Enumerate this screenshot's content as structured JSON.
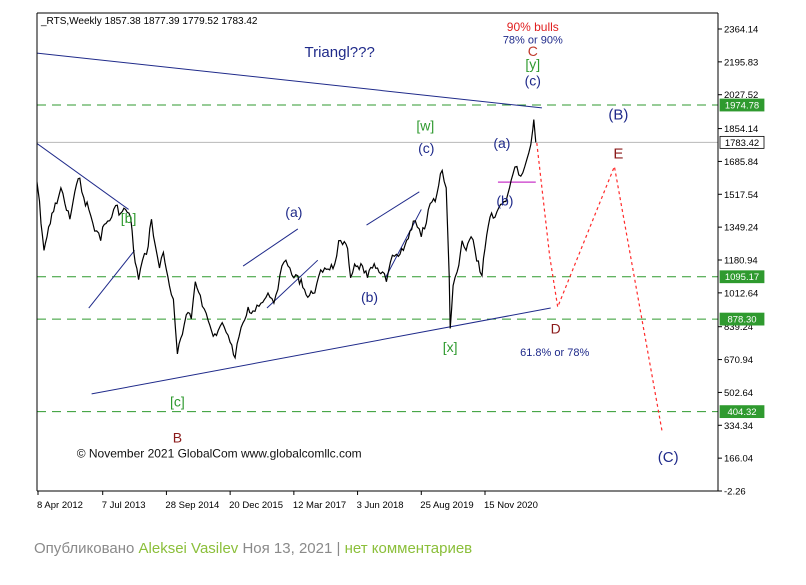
{
  "chart_data": {
    "type": "line",
    "header": {
      "symbol": "_RTS,Weekly",
      "ohlc": [
        "1857.38",
        "1877.39",
        "1779.52",
        "1783.42"
      ]
    },
    "y_ticks": [
      "2364.14",
      "2195.83",
      "2027.52",
      "1854.14",
      "1685.84",
      "1517.54",
      "1349.24",
      "1180.94",
      "1012.64",
      "839.24",
      "670.94",
      "502.64",
      "334.34",
      "166.04",
      "-2.26"
    ],
    "y_tick_values": [
      2364.14,
      2195.83,
      2027.52,
      1854.14,
      1685.84,
      1517.54,
      1349.24,
      1180.94,
      1012.64,
      839.24,
      670.94,
      502.64,
      334.34,
      166.04,
      -2.26
    ],
    "x_ticks": [
      "8 Apr 2012",
      "7 Jul 2013",
      "28 Sep 2014",
      "20 Dec 2015",
      "12 Mar 2017",
      "3 Jun 2018",
      "25 Aug 2019",
      "15 Nov 2020"
    ],
    "x_tick_dates": [
      "2012-04-08",
      "2013-07-07",
      "2014-09-28",
      "2015-12-20",
      "2017-03-12",
      "2018-06-03",
      "2019-08-25",
      "2020-11-15"
    ],
    "ylim": [
      -2.26,
      2490
    ],
    "price_series": {
      "name": "",
      "points": [
        [
          "2011-12-04",
          1650
        ],
        [
          "2012-01-15",
          1500
        ],
        [
          "2012-02-12",
          1650
        ],
        [
          "2012-03-11",
          1700
        ],
        [
          "2012-04-08",
          1540
        ],
        [
          "2012-05-20",
          1230
        ],
        [
          "2012-06-10",
          1300
        ],
        [
          "2012-07-15",
          1420
        ],
        [
          "2012-08-19",
          1470
        ],
        [
          "2012-09-16",
          1550
        ],
        [
          "2012-10-14",
          1470
        ],
        [
          "2012-11-18",
          1390
        ],
        [
          "2012-12-23",
          1530
        ],
        [
          "2013-01-27",
          1600
        ],
        [
          "2013-02-24",
          1500
        ],
        [
          "2013-03-31",
          1440
        ],
        [
          "2013-04-28",
          1370
        ],
        [
          "2013-05-26",
          1330
        ],
        [
          "2013-06-23",
          1280
        ],
        [
          "2013-07-07",
          1350
        ],
        [
          "2013-08-11",
          1380
        ],
        [
          "2013-09-08",
          1400
        ],
        [
          "2013-10-06",
          1460
        ],
        [
          "2013-11-10",
          1420
        ],
        [
          "2013-12-15",
          1440
        ],
        [
          "2014-01-19",
          1400
        ],
        [
          "2014-02-09",
          1230
        ],
        [
          "2014-03-16",
          1080
        ],
        [
          "2014-04-13",
          1180
        ],
        [
          "2014-05-11",
          1210
        ],
        [
          "2014-06-15",
          1390
        ],
        [
          "2014-07-13",
          1250
        ],
        [
          "2014-08-10",
          1140
        ],
        [
          "2014-09-07",
          1220
        ],
        [
          "2014-09-28",
          1130
        ],
        [
          "2014-10-19",
          1050
        ],
        [
          "2014-11-16",
          980
        ],
        [
          "2014-12-14",
          700
        ],
        [
          "2015-01-18",
          800
        ],
        [
          "2015-02-15",
          900
        ],
        [
          "2015-03-22",
          880
        ],
        [
          "2015-04-19",
          1070
        ],
        [
          "2015-05-24",
          1000
        ],
        [
          "2015-06-21",
          930
        ],
        [
          "2015-07-19",
          870
        ],
        [
          "2015-08-23",
          790
        ],
        [
          "2015-09-27",
          820
        ],
        [
          "2015-10-25",
          860
        ],
        [
          "2015-11-22",
          810
        ],
        [
          "2015-12-20",
          760
        ],
        [
          "2016-01-24",
          680
        ],
        [
          "2016-02-21",
          790
        ],
        [
          "2016-03-20",
          860
        ],
        [
          "2016-04-24",
          940
        ],
        [
          "2016-05-29",
          920
        ],
        [
          "2016-06-26",
          950
        ],
        [
          "2016-07-24",
          960
        ],
        [
          "2016-08-28",
          990
        ],
        [
          "2016-09-25",
          990
        ],
        [
          "2016-10-23",
          960
        ],
        [
          "2016-11-20",
          1030
        ],
        [
          "2016-12-18",
          1150
        ],
        [
          "2017-01-15",
          1180
        ],
        [
          "2017-02-12",
          1140
        ],
        [
          "2017-03-12",
          1090
        ],
        [
          "2017-04-09",
          1100
        ],
        [
          "2017-05-14",
          1040
        ],
        [
          "2017-06-18",
          990
        ],
        [
          "2017-07-23",
          1010
        ],
        [
          "2017-08-20",
          1060
        ],
        [
          "2017-09-17",
          1130
        ],
        [
          "2017-10-15",
          1140
        ],
        [
          "2017-11-19",
          1130
        ],
        [
          "2017-12-24",
          1160
        ],
        [
          "2018-01-21",
          1280
        ],
        [
          "2018-02-18",
          1260
        ],
        [
          "2018-03-25",
          1240
        ],
        [
          "2018-04-15",
          1090
        ],
        [
          "2018-05-13",
          1160
        ],
        [
          "2018-06-03",
          1150
        ],
        [
          "2018-07-08",
          1150
        ],
        [
          "2018-08-12",
          1090
        ],
        [
          "2018-09-16",
          1140
        ],
        [
          "2018-10-21",
          1140
        ],
        [
          "2018-11-25",
          1120
        ],
        [
          "2018-12-23",
          1070
        ],
        [
          "2019-01-20",
          1170
        ],
        [
          "2019-02-17",
          1200
        ],
        [
          "2019-03-17",
          1200
        ],
        [
          "2019-04-21",
          1230
        ],
        [
          "2019-05-26",
          1290
        ],
        [
          "2019-06-30",
          1380
        ],
        [
          "2019-07-28",
          1350
        ],
        [
          "2019-08-25",
          1300
        ],
        [
          "2019-09-29",
          1370
        ],
        [
          "2019-10-27",
          1470
        ],
        [
          "2019-12-01",
          1480
        ],
        [
          "2020-01-19",
          1640
        ],
        [
          "2020-02-16",
          1550
        ],
        [
          "2020-03-08",
          1100
        ],
        [
          "2020-03-15",
          830
        ],
        [
          "2020-04-05",
          1050
        ],
        [
          "2020-05-03",
          1120
        ],
        [
          "2020-06-07",
          1280
        ],
        [
          "2020-07-05",
          1230
        ],
        [
          "2020-08-09",
          1300
        ],
        [
          "2020-09-06",
          1230
        ],
        [
          "2020-10-11",
          1120
        ],
        [
          "2020-10-25",
          1100
        ],
        [
          "2020-11-15",
          1240
        ],
        [
          "2020-12-20",
          1400
        ],
        [
          "2021-01-24",
          1400
        ],
        [
          "2021-02-21",
          1450
        ],
        [
          "2021-03-28",
          1480
        ],
        [
          "2021-04-25",
          1520
        ],
        [
          "2021-05-30",
          1620
        ],
        [
          "2021-06-27",
          1660
        ],
        [
          "2021-07-25",
          1610
        ],
        [
          "2021-08-22",
          1660
        ],
        [
          "2021-09-19",
          1730
        ],
        [
          "2021-10-17",
          1850
        ],
        [
          "2021-10-24",
          1900
        ],
        [
          "2021-11-07",
          1783.42
        ]
      ]
    },
    "horizontal_levels": [
      {
        "value": 1974.78,
        "label": "1974.78",
        "color": "#2f9a2f",
        "label_color": "#2f9a2f"
      },
      {
        "value": 1783.42,
        "label": "1783.42",
        "color": "#b8b8b8",
        "label_color": "#000000"
      },
      {
        "value": 1095.17,
        "label": "1095.17",
        "color": "#2f9a2f",
        "label_color": "#2f9a2f"
      },
      {
        "value": 878.3,
        "label": "878.30",
        "color": "#2f9a2f",
        "label_color": "#2f9a2f"
      },
      {
        "value": 404.32,
        "label": "404.32",
        "color": "#2f9a2f",
        "label_color": "#2f9a2f"
      }
    ],
    "trend_lines": [
      {
        "color": "#1f2a8a",
        "from": [
          "2011-12-04",
          2250
        ],
        "to": [
          "2021-12-20",
          1960
        ]
      },
      {
        "color": "#1f2a8a",
        "from": [
          "2013-04-20",
          495
        ],
        "to": [
          "2022-02-20",
          935
        ]
      },
      {
        "color": "#1f2a8a",
        "from": [
          "2011-12-04",
          1840
        ],
        "to": [
          "2014-01-05",
          1440
        ]
      },
      {
        "color": "#1f2a8a",
        "from": [
          "2013-03-31",
          935
        ],
        "to": [
          "2014-02-16",
          1230
        ]
      },
      {
        "color": "#1f2a8a",
        "from": [
          "2016-03-20",
          1150
        ],
        "to": [
          "2017-04-09",
          1340
        ]
      },
      {
        "color": "#1f2a8a",
        "from": [
          "2016-09-04",
          935
        ],
        "to": [
          "2017-08-27",
          1180
        ]
      },
      {
        "color": "#1f2a8a",
        "from": [
          "2018-08-05",
          1360
        ],
        "to": [
          "2019-08-11",
          1530
        ]
      },
      {
        "color": "#1f2a8a",
        "from": [
          "2018-12-16",
          1090
        ],
        "to": [
          "2019-08-25",
          1440
        ]
      },
      {
        "color": "#c836c8",
        "from": [
          "2021-02-14",
          1580
        ],
        "to": [
          "2021-11-07",
          1580
        ]
      }
    ],
    "projection": {
      "color": "#ff2a2a",
      "points": [
        [
          "2021-11-14",
          1780
        ],
        [
          "2022-02-13",
          1200
        ],
        [
          "2022-04-10",
          940
        ],
        [
          "2023-05-14",
          1660
        ],
        [
          "2024-04-14",
          300
        ]
      ]
    },
    "wave_labels": [
      {
        "text": "C",
        "x": "2021-10-17",
        "y": 2225,
        "color": "#c0392b",
        "size": 14
      },
      {
        "text": "[y]",
        "x": "2021-10-17",
        "y": 2160,
        "color": "#2f9a2f",
        "size": 14
      },
      {
        "text": "(c)",
        "x": "2021-10-17",
        "y": 2075,
        "color": "#1f2a8a",
        "size": 14
      },
      {
        "text": "(a)",
        "x": "2021-03-14",
        "y": 1755,
        "color": "#1f2a8a",
        "size": 14
      },
      {
        "text": "(b)",
        "x": "2021-04-04",
        "y": 1460,
        "color": "#1f2a8a",
        "size": 14
      },
      {
        "text": "(c)",
        "x": "2019-09-29",
        "y": 1730,
        "color": "#1f2a8a",
        "size": 14
      },
      {
        "text": "[w]",
        "x": "2019-09-22",
        "y": 1845,
        "color": "#2f9a2f",
        "size": 14
      },
      {
        "text": "[x]",
        "x": "2020-03-15",
        "y": 710,
        "color": "#2f9a2f",
        "size": 14
      },
      {
        "text": "(a)",
        "x": "2017-03-12",
        "y": 1400,
        "color": "#1f2a8a",
        "size": 14
      },
      {
        "text": "(b)",
        "x": "2018-08-26",
        "y": 965,
        "color": "#1f2a8a",
        "size": 14
      },
      {
        "text": "[b]",
        "x": "2014-01-05",
        "y": 1370,
        "color": "#2f9a2f",
        "size": 14
      },
      {
        "text": "[c]",
        "x": "2014-12-14",
        "y": 430,
        "color": "#2f9a2f",
        "size": 14
      },
      {
        "text": "B",
        "x": "2014-12-14",
        "y": 245,
        "color": "#8b1a1a",
        "size": 14
      },
      {
        "text": "D",
        "x": "2022-03-27",
        "y": 805,
        "color": "#8b1a1a",
        "size": 14
      },
      {
        "text": "(B)",
        "x": "2023-06-11",
        "y": 1900,
        "color": "#1f2a8a",
        "size": 15
      },
      {
        "text": "E",
        "x": "2023-06-11",
        "y": 1700,
        "color": "#8b1a1a",
        "size": 15
      },
      {
        "text": "(C)",
        "x": "2024-05-26",
        "y": 145,
        "color": "#1f2a8a",
        "size": 15
      }
    ],
    "annotations": [
      {
        "text": "90% bulls",
        "x": "2021-10-17",
        "y": 2355,
        "color": "#e02020",
        "size": 12
      },
      {
        "text": "78% or 90%",
        "x": "2021-10-17",
        "y": 2290,
        "color": "#1f2a8a",
        "size": 11
      },
      {
        "text": "61.8% or 78%",
        "x": "2022-03-20",
        "y": 690,
        "color": "#1f2a8a",
        "size": 11
      },
      {
        "text": "Triangl???",
        "x": "2018-01-28",
        "y": 2220,
        "color": "#1f2a8a",
        "size": 15
      },
      {
        "text": "© November 2021 GlobalCom www.globalcomllc.com",
        "x": "2015-10-04",
        "y": 170,
        "color": "#111111",
        "size": 12
      }
    ]
  },
  "footer": {
    "prefix": "Опубликовано",
    "author": "Aleksei Vasilev",
    "date": "Ноя 13, 2021",
    "separator": "|",
    "comments": "нет комментариев"
  }
}
